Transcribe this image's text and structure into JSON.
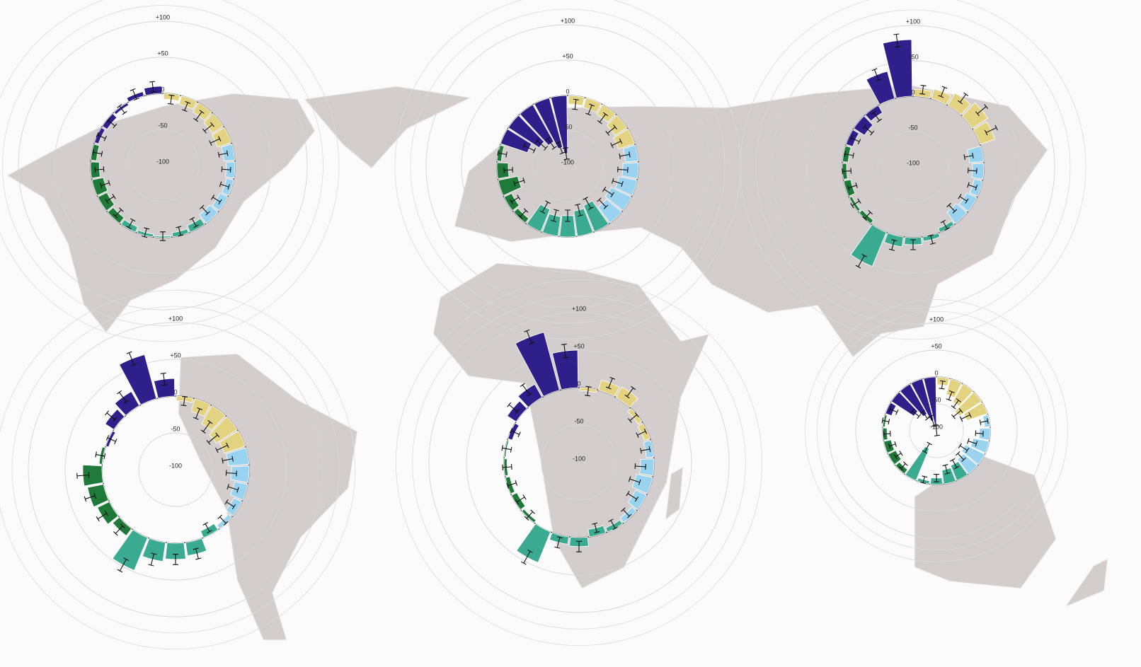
{
  "chart_data": [
    {
      "type": "radial-bar",
      "ylim": [
        -100,
        100
      ],
      "yticks": [
        {
          "value": 100,
          "label": "+100"
        },
        {
          "value": 50,
          "label": "+50"
        },
        0,
        -50,
        -100
      ],
      "series": [
        {
          "color": "#e3d27f",
          "values": [
            -8,
            -12,
            -15,
            -18,
            -20
          ],
          "errors": [
            6,
            6,
            7,
            7,
            7
          ]
        },
        {
          "color": "#99d3ef",
          "values": [
            -15,
            -12,
            -10,
            -12,
            -15
          ],
          "errors": [
            6,
            6,
            6,
            6,
            6
          ]
        },
        {
          "color": "#3aaa90",
          "values": [
            -10,
            -6,
            -2,
            -4,
            -8
          ],
          "errors": [
            6,
            6,
            6,
            6,
            6
          ]
        },
        {
          "color": "#1f7a3a",
          "values": [
            -10,
            -14,
            -16,
            -12,
            -8
          ],
          "errors": [
            6,
            6,
            6,
            6,
            6
          ]
        },
        {
          "color": "#2e1f8a",
          "values": [
            -6,
            -8,
            -4,
            6,
            10
          ],
          "errors": [
            6,
            6,
            6,
            7,
            7
          ]
        }
      ]
    },
    {
      "type": "radial-bar",
      "ylim": [
        -100,
        100
      ],
      "yticks": [
        {
          "value": 100,
          "label": "+100"
        },
        {
          "value": 50,
          "label": "+50"
        },
        0,
        -50,
        -100
      ],
      "series": [
        {
          "color": "#e3d27f",
          "values": [
            -12,
            -14,
            -16,
            -20,
            -24
          ],
          "errors": [
            7,
            7,
            7,
            7,
            7
          ]
        },
        {
          "color": "#99d3ef",
          "values": [
            -18,
            -22,
            -26,
            -32,
            -28
          ],
          "errors": [
            7,
            7,
            7,
            7,
            7
          ]
        },
        {
          "color": "#3aaa90",
          "values": [
            -40,
            -36,
            -30,
            -28,
            -34
          ],
          "errors": [
            8,
            8,
            8,
            8,
            8
          ]
        },
        {
          "color": "#1f7a3a",
          "values": [
            -8,
            -12,
            -28,
            -16,
            -6
          ],
          "errors": [
            6,
            6,
            7,
            6,
            6
          ]
        },
        {
          "color": "#2e1f8a",
          "values": [
            -40,
            -52,
            -60,
            -72,
            -82
          ],
          "errors": [
            8,
            8,
            8,
            8,
            8
          ]
        }
      ]
    },
    {
      "type": "radial-bar",
      "ylim": [
        -100,
        100
      ],
      "yticks": [
        {
          "value": 100,
          "label": "+100"
        },
        {
          "value": 50,
          "label": "+50"
        },
        0,
        -50,
        -100
      ],
      "series": [
        {
          "color": "#e3d27f",
          "values": [
            10,
            14,
            20,
            26,
            22
          ],
          "errors": [
            6,
            7,
            7,
            8,
            8
          ]
        },
        {
          "color": "#99d3ef",
          "values": [
            -20,
            -16,
            -12,
            -16,
            -20
          ],
          "errors": [
            6,
            6,
            6,
            6,
            6
          ]
        },
        {
          "color": "#3aaa90",
          "values": [
            -6,
            6,
            10,
            14,
            52
          ],
          "errors": [
            6,
            6,
            7,
            7,
            9
          ]
        },
        {
          "color": "#1f7a3a",
          "values": [
            -6,
            -4,
            -10,
            -6,
            -8
          ],
          "errors": [
            6,
            6,
            6,
            6,
            6
          ]
        },
        {
          "color": "#2e1f8a",
          "values": [
            -10,
            -18,
            -12,
            40,
            80
          ],
          "errors": [
            6,
            7,
            7,
            8,
            9
          ]
        }
      ]
    },
    {
      "type": "radial-bar",
      "ylim": [
        -100,
        100
      ],
      "yticks": [
        {
          "value": 100,
          "label": "+100"
        },
        {
          "value": 50,
          "label": "+50"
        },
        0,
        -50,
        -100
      ],
      "series": [
        {
          "color": "#e3d27f",
          "values": [
            -6,
            -18,
            -28,
            -34,
            -30
          ],
          "errors": [
            6,
            7,
            8,
            8,
            8
          ]
        },
        {
          "color": "#99d3ef",
          "values": [
            -28,
            -24,
            -18,
            -12,
            -6
          ],
          "errors": [
            7,
            7,
            7,
            6,
            6
          ]
        },
        {
          "color": "#3aaa90",
          "values": [
            -10,
            18,
            22,
            26,
            48
          ],
          "errors": [
            6,
            7,
            7,
            8,
            9
          ]
        },
        {
          "color": "#1f7a3a",
          "values": [
            12,
            18,
            22,
            26,
            4
          ],
          "errors": [
            7,
            7,
            7,
            8,
            6
          ]
        },
        {
          "color": "#2e1f8a",
          "values": [
            -4,
            14,
            22,
            62,
            24
          ],
          "errors": [
            6,
            7,
            8,
            9,
            8
          ]
        }
      ]
    },
    {
      "type": "radial-bar",
      "ylim": [
        -100,
        100
      ],
      "yticks": [
        {
          "value": 100,
          "label": "+100"
        },
        {
          "value": 50,
          "label": "+50"
        },
        0,
        -50,
        -100
      ],
      "series": [
        {
          "color": "#e3d27f",
          "values": [
            -4,
            14,
            16,
            -6,
            -8
          ],
          "errors": [
            6,
            7,
            7,
            6,
            6
          ]
        },
        {
          "color": "#99d3ef",
          "values": [
            -10,
            -18,
            -22,
            -16,
            -8
          ],
          "errors": [
            6,
            7,
            7,
            7,
            6
          ]
        },
        {
          "color": "#3aaa90",
          "values": [
            -6,
            -10,
            12,
            10,
            44
          ],
          "errors": [
            6,
            6,
            7,
            7,
            9
          ]
        },
        {
          "color": "#1f7a3a",
          "values": [
            -4,
            -8,
            -6,
            -4,
            -2
          ],
          "errors": [
            6,
            6,
            6,
            6,
            6
          ]
        },
        {
          "color": "#2e1f8a",
          "values": [
            -6,
            14,
            20,
            80,
            50
          ],
          "errors": [
            6,
            7,
            8,
            9,
            9
          ]
        }
      ]
    },
    {
      "type": "radial-bar",
      "ylim": [
        -100,
        100
      ],
      "yticks": [
        {
          "value": 100,
          "label": "+100"
        },
        {
          "value": 50,
          "label": "+50"
        },
        0,
        -50,
        -100
      ],
      "series": [
        {
          "color": "#e3d27f",
          "values": [
            -14,
            -30,
            -38,
            -50,
            -40
          ],
          "errors": [
            7,
            8,
            8,
            9,
            9
          ]
        },
        {
          "color": "#99d3ef",
          "values": [
            -10,
            -20,
            -30,
            -40,
            -34
          ],
          "errors": [
            7,
            7,
            8,
            8,
            8
          ]
        },
        {
          "color": "#3aaa90",
          "values": [
            -30,
            -26,
            -12,
            -6,
            -64
          ],
          "errors": [
            8,
            8,
            7,
            6,
            9
          ]
        },
        {
          "color": "#1f7a3a",
          "values": [
            -10,
            -16,
            -14,
            -8,
            -4
          ],
          "errors": [
            6,
            6,
            6,
            6,
            6
          ]
        },
        {
          "color": "#2e1f8a",
          "values": [
            -12,
            -50,
            -64,
            -80,
            -100
          ],
          "errors": [
            7,
            8,
            8,
            9,
            9
          ]
        }
      ]
    }
  ]
}
